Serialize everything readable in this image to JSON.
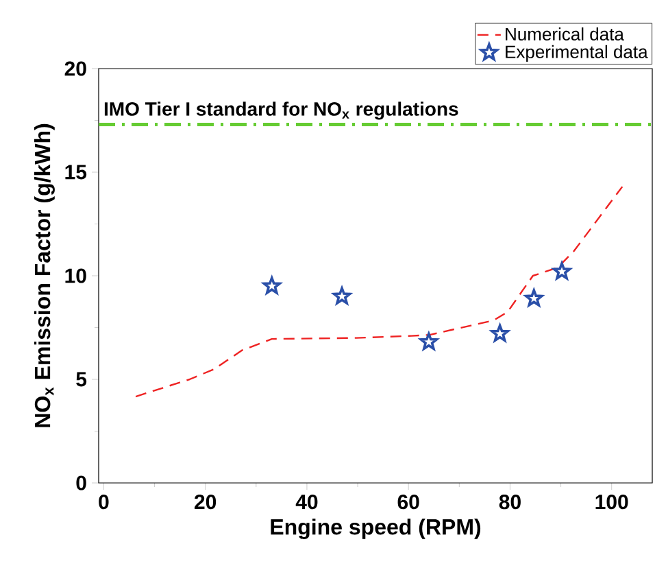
{
  "chart_data": {
    "type": "line",
    "xlabel": "Engine speed (RPM)",
    "ylabel": "NO$_{x}$ Emission Factor (g/kWh)",
    "xlim": [
      -1,
      108
    ],
    "ylim": [
      0,
      20
    ],
    "xticks": [
      0,
      20,
      40,
      60,
      80,
      100
    ],
    "yticks": [
      0,
      5,
      10,
      15,
      20
    ],
    "grid": false,
    "legend": "top right",
    "series": [
      {
        "name": "Numerical data",
        "color": "#ee2222",
        "line_style": "dashed",
        "marker": "none",
        "x": [
          6.3,
          16.9,
          21.8,
          27.2,
          33.1,
          49.8,
          60.6,
          64.2,
          76.8,
          79.5,
          84.5,
          89.4,
          92.6,
          102.1
        ],
        "values": [
          4.17,
          5.0,
          5.5,
          6.4,
          6.95,
          7.0,
          7.1,
          7.15,
          7.85,
          8.25,
          10.0,
          10.4,
          11.2,
          14.3
        ]
      },
      {
        "name": "Experimental data",
        "type": "scatter",
        "color": "#2a4fa8",
        "marker": "star",
        "x": [
          33.1,
          46.9,
          64.0,
          78.0,
          84.7,
          90.2
        ],
        "values": [
          9.5,
          9.0,
          6.8,
          7.2,
          8.9,
          10.2
        ]
      }
    ],
    "ref_lines": [
      {
        "axis": "y",
        "value": 17.3,
        "label": "IMO Tier I standard for NO$_{x}$ regulations",
        "color": "#66cc33",
        "line_style": "dashdotted"
      }
    ]
  }
}
